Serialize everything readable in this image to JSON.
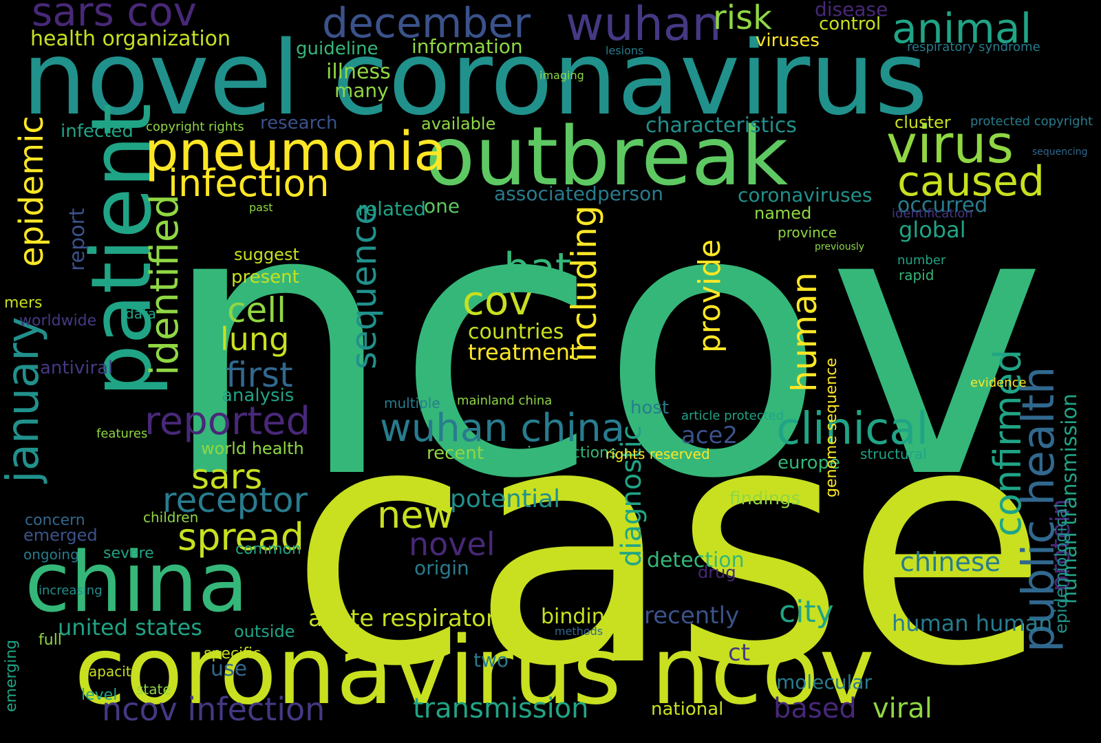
{
  "palette": {
    "background": "#000000",
    "colors": [
      "#fde725",
      "#c8e020",
      "#90d743",
      "#5ec962",
      "#35b779",
      "#20a486",
      "#21918c",
      "#287c8e",
      "#31688e",
      "#3b528b",
      "#443983",
      "#482878",
      "#440154"
    ]
  },
  "words": [
    {
      "text": "ncov",
      "color": "#35b779"
    },
    {
      "text": "case",
      "color": "#c8e020"
    },
    {
      "text": "novel coronavirus",
      "color": "#21918c"
    },
    {
      "text": "outbreak",
      "color": "#5ec962"
    },
    {
      "text": "coronavirus ncov",
      "color": "#c8e020"
    },
    {
      "text": "patient",
      "color": "#20a486"
    },
    {
      "text": "china",
      "color": "#35b779"
    },
    {
      "text": "pneumonia",
      "color": "#fde725"
    },
    {
      "text": "virus",
      "color": "#90d743"
    },
    {
      "text": "wuhan",
      "color": "#443983"
    },
    {
      "text": "december",
      "color": "#3b528b"
    },
    {
      "text": "sars cov",
      "color": "#482878"
    },
    {
      "text": "animal",
      "color": "#20a486"
    },
    {
      "text": "risk",
      "color": "#90d743"
    },
    {
      "text": "caused",
      "color": "#c8e020"
    },
    {
      "text": "infection",
      "color": "#fde725"
    },
    {
      "text": "reported",
      "color": "#482878"
    },
    {
      "text": "wuhan china",
      "color": "#287c8e"
    },
    {
      "text": "clinical",
      "color": "#20a486"
    },
    {
      "text": "confirmed",
      "color": "#20a486"
    },
    {
      "text": "public health",
      "color": "#31688e"
    },
    {
      "text": "protein",
      "color": "#482878"
    },
    {
      "text": "human transmission",
      "color": "#20a486"
    },
    {
      "text": "epidemiological",
      "color": "#21918c"
    },
    {
      "text": "identified",
      "color": "#90d743"
    },
    {
      "text": "january",
      "color": "#21918c"
    },
    {
      "text": "epidemic",
      "color": "#fde725"
    },
    {
      "text": "sequence",
      "color": "#21918c"
    },
    {
      "text": "including",
      "color": "#fde725"
    },
    {
      "text": "human",
      "color": "#fde725"
    },
    {
      "text": "diagnostic",
      "color": "#20a486"
    },
    {
      "text": "provide",
      "color": "#fde725"
    },
    {
      "text": "bat",
      "color": "#35b779"
    },
    {
      "text": "cov",
      "color": "#c8e020"
    },
    {
      "text": "cell",
      "color": "#90d743"
    },
    {
      "text": "lung",
      "color": "#c8e020"
    },
    {
      "text": "first",
      "color": "#31688e"
    },
    {
      "text": "sars",
      "color": "#c8e020"
    },
    {
      "text": "receptor",
      "color": "#287c8e"
    },
    {
      "text": "spread",
      "color": "#c8e020"
    },
    {
      "text": "new",
      "color": "#c8e020"
    },
    {
      "text": "novel",
      "color": "#482878"
    },
    {
      "text": "potential",
      "color": "#21918c"
    },
    {
      "text": "treatment",
      "color": "#fde725"
    },
    {
      "text": "countries",
      "color": "#c8e020"
    },
    {
      "text": "city",
      "color": "#20a486"
    },
    {
      "text": "chinese",
      "color": "#287c8e"
    },
    {
      "text": "acute respiratory",
      "color": "#c8e020"
    },
    {
      "text": "binding",
      "color": "#c8e020"
    },
    {
      "text": "transmission",
      "color": "#20a486"
    },
    {
      "text": "ncov infection",
      "color": "#443983"
    },
    {
      "text": "united states",
      "color": "#20a486"
    },
    {
      "text": "viral",
      "color": "#90d743"
    },
    {
      "text": "based",
      "color": "#482878"
    },
    {
      "text": "detection",
      "color": "#35b779"
    },
    {
      "text": "recently",
      "color": "#3b528b"
    },
    {
      "text": "human human",
      "color": "#287c8e"
    },
    {
      "text": "global",
      "color": "#20a486"
    },
    {
      "text": "occurred",
      "color": "#287c8e"
    },
    {
      "text": "coronaviruses",
      "color": "#21918c"
    },
    {
      "text": "associated",
      "color": "#287c8e"
    },
    {
      "text": "person",
      "color": "#287c8e"
    },
    {
      "text": "related",
      "color": "#20a486"
    },
    {
      "text": "one",
      "color": "#5ec962"
    },
    {
      "text": "characteristics",
      "color": "#21918c"
    },
    {
      "text": "research",
      "color": "#3b528b"
    },
    {
      "text": "infected",
      "color": "#20a486"
    },
    {
      "text": "available",
      "color": "#90d743"
    },
    {
      "text": "illness",
      "color": "#90d743"
    },
    {
      "text": "many",
      "color": "#90d743"
    },
    {
      "text": "information",
      "color": "#90d743"
    },
    {
      "text": "guideline",
      "color": "#35b779"
    },
    {
      "text": "health organization",
      "color": "#c8e020"
    },
    {
      "text": "disease",
      "color": "#482878"
    },
    {
      "text": "control",
      "color": "#c8e020"
    },
    {
      "text": "viruses",
      "color": "#fde725"
    },
    {
      "text": "cluster",
      "color": "#c8e020"
    },
    {
      "text": "report",
      "color": "#3b528b"
    },
    {
      "text": "present",
      "color": "#c8e020"
    },
    {
      "text": "suggest",
      "color": "#c8e020"
    },
    {
      "text": "analysis",
      "color": "#20a486"
    },
    {
      "text": "worldwide",
      "color": "#443983"
    },
    {
      "text": "antiviral",
      "color": "#443983"
    },
    {
      "text": "mers",
      "color": "#c8e020"
    },
    {
      "text": "world health",
      "color": "#90d743"
    },
    {
      "text": "ace2",
      "color": "#3b528b"
    },
    {
      "text": "host",
      "color": "#287c8e"
    },
    {
      "text": "emerged",
      "color": "#3b528b"
    },
    {
      "text": "ongoing",
      "color": "#287c8e"
    },
    {
      "text": "europe",
      "color": "#35b779"
    },
    {
      "text": "findings",
      "color": "#90d743"
    },
    {
      "text": "origin",
      "color": "#287c8e"
    },
    {
      "text": "drug",
      "color": "#482878"
    },
    {
      "text": "two",
      "color": "#287c8e"
    },
    {
      "text": "use",
      "color": "#31688e"
    },
    {
      "text": "ct",
      "color": "#443983"
    },
    {
      "text": "molecular",
      "color": "#287c8e"
    },
    {
      "text": "national",
      "color": "#c8e020"
    },
    {
      "text": "increasing",
      "color": "#21918c"
    },
    {
      "text": "severe",
      "color": "#20a486"
    },
    {
      "text": "common",
      "color": "#20a486"
    },
    {
      "text": "outside",
      "color": "#20a486"
    },
    {
      "text": "recent",
      "color": "#90d743"
    },
    {
      "text": "interactions",
      "color": "#35b779"
    },
    {
      "text": "article protected",
      "color": "#20a486"
    },
    {
      "text": "rights reserved",
      "color": "#fde725"
    },
    {
      "text": "level",
      "color": "#20a486"
    },
    {
      "text": "state",
      "color": "#90d743"
    },
    {
      "text": "concern",
      "color": "#31688e"
    },
    {
      "text": "children",
      "color": "#90d743"
    },
    {
      "text": "specific",
      "color": "#c8e020"
    },
    {
      "text": "capacity",
      "color": "#c8e020"
    },
    {
      "text": "full",
      "color": "#90d743"
    },
    {
      "text": "emerging",
      "color": "#20a486"
    },
    {
      "text": "copyright rights",
      "color": "#90d743"
    },
    {
      "text": "genome sequence",
      "color": "#fde725"
    },
    {
      "text": "named",
      "color": "#90d743"
    },
    {
      "text": "province",
      "color": "#90d743"
    },
    {
      "text": "protected copyright",
      "color": "#287c8e"
    },
    {
      "text": "respiratory syndrome",
      "color": "#287c8e"
    },
    {
      "text": "mainland china",
      "color": "#90d743"
    },
    {
      "text": "multiple",
      "color": "#287c8e"
    },
    {
      "text": "structural",
      "color": "#20a486"
    },
    {
      "text": "evidence",
      "color": "#fde725"
    },
    {
      "text": "number",
      "color": "#20a486"
    },
    {
      "text": "rapid",
      "color": "#35b779"
    },
    {
      "text": "identification",
      "color": "#443983"
    },
    {
      "text": "sequencing",
      "color": "#31688e"
    },
    {
      "text": "previously",
      "color": "#90d743"
    },
    {
      "text": "data",
      "color": "#20a486"
    },
    {
      "text": "features",
      "color": "#90d743"
    },
    {
      "text": "past",
      "color": "#90d743"
    },
    {
      "text": "imaging",
      "color": "#90d743"
    },
    {
      "text": "lesions",
      "color": "#287c8e"
    },
    {
      "text": "methods",
      "color": "#31688e"
    },
    {
      "text": "reported",
      "color": "#482878"
    }
  ]
}
